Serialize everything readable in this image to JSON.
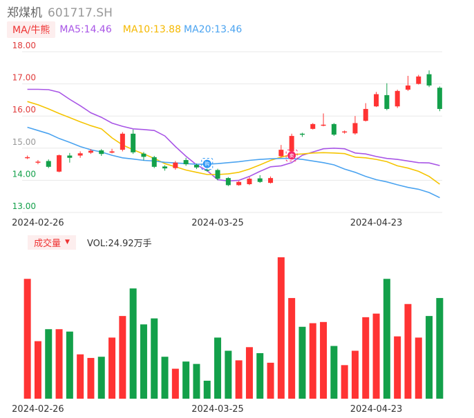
{
  "header": {
    "name": "郑煤机",
    "code": "601717.SH"
  },
  "ma_legend": {
    "tag": "MA/牛熊",
    "ma5": "MA5:14.46",
    "ma10": "MA10:13.88",
    "ma20": "MA20:13.46"
  },
  "volume_legend": {
    "tag": "成交量",
    "caret": "▼",
    "value": "VOL:24.92万手"
  },
  "colors": {
    "up": "#ff3333",
    "down": "#13a04a",
    "ma5": "#a855e6",
    "ma10": "#f5c400",
    "ma20": "#4aa3f0",
    "grid": "#e8e8e8",
    "axis_label_red": "#e03b3b",
    "axis_label_green": "#13a04a"
  },
  "markers": [
    {
      "index": 17,
      "label": "购",
      "color": "#2a95f5",
      "at": "top"
    },
    {
      "index": 25,
      "label": "卖",
      "color": "#f5286b",
      "at": "low"
    }
  ],
  "chart_data": [
    {
      "type": "candlestick",
      "title": "",
      "x_tick_labels": [
        "2024-02-26",
        "2024-03-25",
        "2024-04-23"
      ],
      "x_tick_index": [
        1,
        18,
        33
      ],
      "y_ticks": [
        "18.00",
        "17.00",
        "16.00",
        "15.00",
        "14.00",
        "13.00"
      ],
      "ylim": [
        13.0,
        18.0
      ],
      "ohlc": [
        [
          14.7,
          14.72,
          14.66,
          14.77
        ],
        [
          14.55,
          14.58,
          14.5,
          14.63
        ],
        [
          14.6,
          14.42,
          14.38,
          14.65
        ],
        [
          14.27,
          14.78,
          14.25,
          14.8
        ],
        [
          14.77,
          14.7,
          14.55,
          14.85
        ],
        [
          14.77,
          14.84,
          14.7,
          14.9
        ],
        [
          14.86,
          14.92,
          14.82,
          14.97
        ],
        [
          14.93,
          14.82,
          14.76,
          14.97
        ],
        [
          14.86,
          14.9,
          14.84,
          14.98
        ],
        [
          14.95,
          15.45,
          14.9,
          15.5
        ],
        [
          15.45,
          14.87,
          14.82,
          15.58
        ],
        [
          14.83,
          14.73,
          14.62,
          14.88
        ],
        [
          14.72,
          14.42,
          14.38,
          14.76
        ],
        [
          14.43,
          14.37,
          14.3,
          14.47
        ],
        [
          14.38,
          14.55,
          14.33,
          14.6
        ],
        [
          14.63,
          14.5,
          14.45,
          14.7
        ],
        [
          14.48,
          14.4,
          14.35,
          14.52
        ],
        [
          14.33,
          14.3,
          14.27,
          14.36
        ],
        [
          14.32,
          14.05,
          14.0,
          14.36
        ],
        [
          14.07,
          13.85,
          13.82,
          14.1
        ],
        [
          13.85,
          13.95,
          13.83,
          13.98
        ],
        [
          13.88,
          14.05,
          13.85,
          14.1
        ],
        [
          14.06,
          13.95,
          13.92,
          14.16
        ],
        [
          13.92,
          14.07,
          13.9,
          14.12
        ],
        [
          14.75,
          14.95,
          14.72,
          15.1
        ],
        [
          14.9,
          15.38,
          14.88,
          15.45
        ],
        [
          15.45,
          15.43,
          15.35,
          15.48
        ],
        [
          15.6,
          15.75,
          15.58,
          15.78
        ],
        [
          15.72,
          15.73,
          15.68,
          16.08
        ],
        [
          15.75,
          15.42,
          15.38,
          15.78
        ],
        [
          15.5,
          15.52,
          15.45,
          15.55
        ],
        [
          15.46,
          15.78,
          15.42,
          16.0
        ],
        [
          15.85,
          16.22,
          15.83,
          16.4
        ],
        [
          16.3,
          16.68,
          16.28,
          16.75
        ],
        [
          16.65,
          16.22,
          16.18,
          17.02
        ],
        [
          16.3,
          16.78,
          16.25,
          16.82
        ],
        [
          16.82,
          16.95,
          16.78,
          17.25
        ],
        [
          17.0,
          17.23,
          16.98,
          17.28
        ],
        [
          17.3,
          16.95,
          16.9,
          17.42
        ],
        [
          16.88,
          16.22,
          16.15,
          16.92
        ]
      ],
      "series": [
        {
          "name": "MA5",
          "values": [
            16.83,
            16.83,
            16.82,
            16.74,
            16.52,
            16.32,
            16.1,
            15.96,
            15.78,
            15.68,
            15.6,
            15.58,
            15.55,
            15.38,
            15.05,
            14.75,
            14.48,
            14.3,
            14.02,
            13.98,
            14.0,
            14.12,
            14.28,
            14.42,
            14.45,
            14.55,
            14.78,
            14.88,
            14.98,
            15.0,
            14.98,
            14.85,
            14.82,
            14.74,
            14.68,
            14.65,
            14.6,
            14.55,
            14.54,
            14.46
          ]
        },
        {
          "name": "MA10",
          "values": [
            16.45,
            16.35,
            16.22,
            16.08,
            15.95,
            15.82,
            15.7,
            15.6,
            15.32,
            15.1,
            14.95,
            14.82,
            14.68,
            14.52,
            14.42,
            14.32,
            14.25,
            14.18,
            14.18,
            14.2,
            14.25,
            14.35,
            14.48,
            14.62,
            14.72,
            14.8,
            14.82,
            14.85,
            14.86,
            14.85,
            14.83,
            14.72,
            14.7,
            14.65,
            14.58,
            14.45,
            14.38,
            14.28,
            14.12,
            13.88
          ]
        },
        {
          "name": "MA20",
          "values": [
            15.65,
            15.55,
            15.45,
            15.3,
            15.18,
            15.05,
            14.95,
            14.88,
            14.78,
            14.7,
            14.66,
            14.62,
            14.6,
            14.56,
            14.54,
            14.52,
            14.5,
            14.5,
            14.52,
            14.55,
            14.58,
            14.62,
            14.65,
            14.67,
            14.68,
            14.68,
            14.65,
            14.6,
            14.55,
            14.48,
            14.35,
            14.25,
            14.12,
            14.02,
            13.95,
            13.86,
            13.78,
            13.72,
            13.62,
            13.46
          ]
        }
      ]
    },
    {
      "type": "bar",
      "title": "",
      "x_tick_labels": [
        "2024-02-26",
        "2024-03-25",
        "2024-04-23"
      ],
      "x_tick_index": [
        1,
        18,
        33
      ],
      "values": [
        1.0,
        0.48,
        0.58,
        0.58,
        0.56,
        0.37,
        0.34,
        0.35,
        0.51,
        0.69,
        0.92,
        0.62,
        0.67,
        0.35,
        0.25,
        0.31,
        0.29,
        0.15,
        0.51,
        0.4,
        0.32,
        0.43,
        0.38,
        0.3,
        1.18,
        0.84,
        0.6,
        0.63,
        0.64,
        0.44,
        0.28,
        0.4,
        0.68,
        0.71,
        1.0,
        0.52,
        0.79,
        0.51,
        0.69,
        0.84
      ],
      "ylim": [
        0,
        1.18
      ]
    }
  ]
}
